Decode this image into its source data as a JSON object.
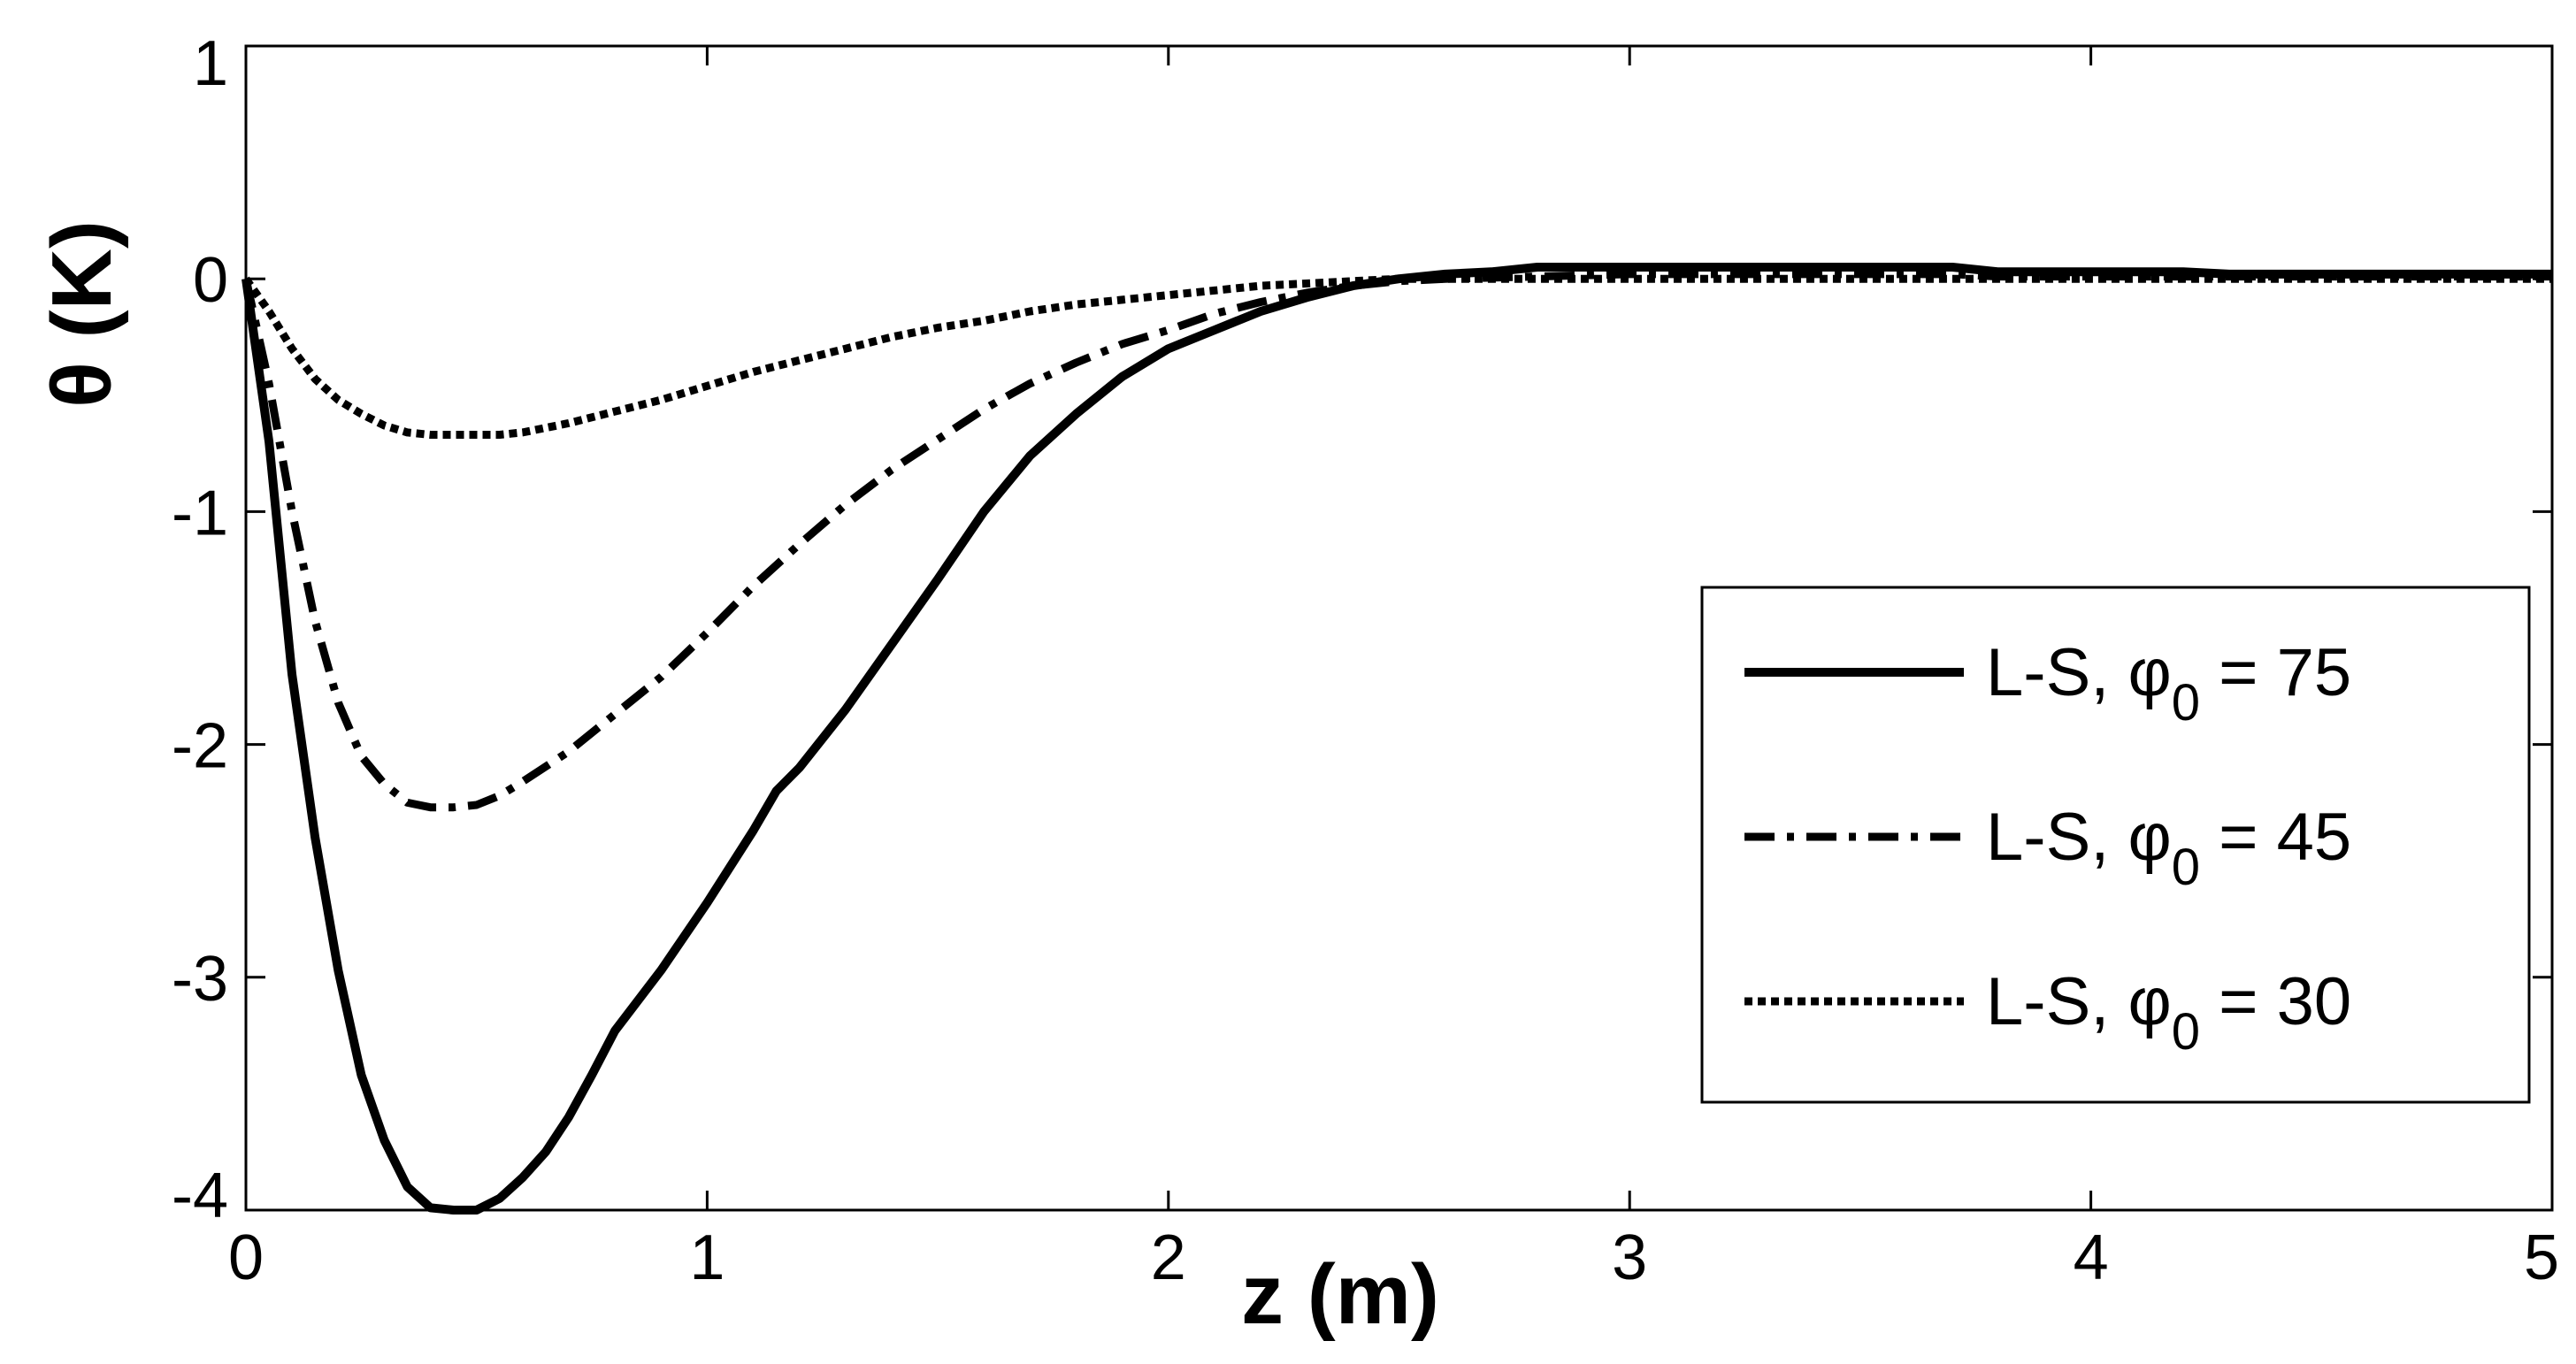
{
  "chart_data": {
    "type": "line",
    "xlabel": "z (m)",
    "ylabel": "θ (K)",
    "xlim": [
      0,
      5
    ],
    "ylim": [
      -4,
      1
    ],
    "xticks": [
      "0",
      "1",
      "2",
      "3",
      "4",
      "5"
    ],
    "yticks": [
      "1",
      "0",
      "-1",
      "-2",
      "-3",
      "-4"
    ],
    "grid": false,
    "legend_position": "lower-right",
    "legend": {
      "items": [
        {
          "text": "L-S, ",
          "symbol": "φ",
          "sub": "0",
          "tail": " = 75"
        },
        {
          "text": "L-S, ",
          "symbol": "φ",
          "sub": "0",
          "tail": " = 45"
        },
        {
          "text": "L-S, ",
          "symbol": "φ",
          "sub": "0",
          "tail": " = 30"
        }
      ]
    },
    "series": [
      {
        "label_index": 0,
        "style": "solid",
        "color": "#000000",
        "x": [
          0,
          0.05,
          0.1,
          0.15,
          0.2,
          0.25,
          0.3,
          0.35,
          0.4,
          0.45,
          0.5,
          0.55,
          0.6,
          0.65,
          0.7,
          0.75,
          0.8,
          0.9,
          1.0,
          1.1,
          1.15,
          1.2,
          1.3,
          1.4,
          1.5,
          1.6,
          1.7,
          1.8,
          1.9,
          2.0,
          2.1,
          2.2,
          2.3,
          2.4,
          2.5,
          2.6,
          2.7,
          2.8,
          2.9,
          3.0,
          3.5,
          3.7,
          3.8,
          4.0,
          4.2,
          4.3,
          4.5,
          5.0
        ],
        "y": [
          0,
          -0.7,
          -1.7,
          -2.4,
          -2.97,
          -3.42,
          -3.7,
          -3.9,
          -3.99,
          -4.0,
          -4.0,
          -3.95,
          -3.86,
          -3.75,
          -3.6,
          -3.42,
          -3.23,
          -2.97,
          -2.68,
          -2.37,
          -2.2,
          -2.1,
          -1.85,
          -1.57,
          -1.29,
          -1.0,
          -0.76,
          -0.58,
          -0.42,
          -0.3,
          -0.22,
          -0.14,
          -0.08,
          -0.03,
          0,
          0.02,
          0.03,
          0.05,
          0.05,
          0.05,
          0.05,
          0.05,
          0.03,
          0.03,
          0.03,
          0.02,
          0.02,
          0.02
        ]
      },
      {
        "label_index": 1,
        "style": "dashdot",
        "color": "#000000",
        "x": [
          0,
          0.05,
          0.1,
          0.15,
          0.2,
          0.25,
          0.3,
          0.35,
          0.4,
          0.45,
          0.5,
          0.55,
          0.6,
          0.7,
          0.8,
          0.9,
          1.0,
          1.1,
          1.2,
          1.3,
          1.4,
          1.5,
          1.6,
          1.7,
          1.8,
          1.9,
          2.0,
          2.1,
          2.2,
          2.3,
          2.4,
          2.5,
          2.6,
          2.8,
          3.0,
          3.5,
          3.7,
          3.8,
          4.0,
          4.5,
          5.0
        ],
        "y": [
          0,
          -0.45,
          -1.0,
          -1.47,
          -1.82,
          -2.05,
          -2.17,
          -2.25,
          -2.27,
          -2.27,
          -2.26,
          -2.22,
          -2.16,
          -2.03,
          -1.87,
          -1.71,
          -1.52,
          -1.32,
          -1.14,
          -0.97,
          -0.82,
          -0.69,
          -0.56,
          -0.45,
          -0.36,
          -0.28,
          -0.22,
          -0.15,
          -0.1,
          -0.06,
          -0.03,
          -0.01,
          0,
          0.01,
          0.02,
          0.02,
          0.02,
          0.01,
          0.01,
          0.01,
          0.01
        ]
      },
      {
        "label_index": 2,
        "style": "dotted",
        "color": "#000000",
        "x": [
          0,
          0.05,
          0.1,
          0.15,
          0.2,
          0.25,
          0.3,
          0.35,
          0.4,
          0.45,
          0.5,
          0.55,
          0.6,
          0.7,
          0.8,
          0.9,
          1.0,
          1.1,
          1.2,
          1.3,
          1.4,
          1.5,
          1.6,
          1.7,
          1.8,
          1.9,
          2.0,
          2.1,
          2.2,
          2.3,
          2.4,
          2.5,
          2.6,
          2.8,
          3.0,
          3.5,
          3.7,
          3.8,
          4.0,
          4.5,
          5.0
        ],
        "y": [
          0,
          -0.14,
          -0.3,
          -0.43,
          -0.52,
          -0.58,
          -0.63,
          -0.66,
          -0.67,
          -0.67,
          -0.67,
          -0.67,
          -0.66,
          -0.62,
          -0.57,
          -0.52,
          -0.46,
          -0.4,
          -0.35,
          -0.3,
          -0.25,
          -0.21,
          -0.18,
          -0.14,
          -0.11,
          -0.09,
          -0.07,
          -0.05,
          -0.03,
          -0.02,
          -0.01,
          0,
          0,
          0,
          0,
          0,
          0,
          0,
          0,
          0,
          0
        ]
      }
    ]
  }
}
